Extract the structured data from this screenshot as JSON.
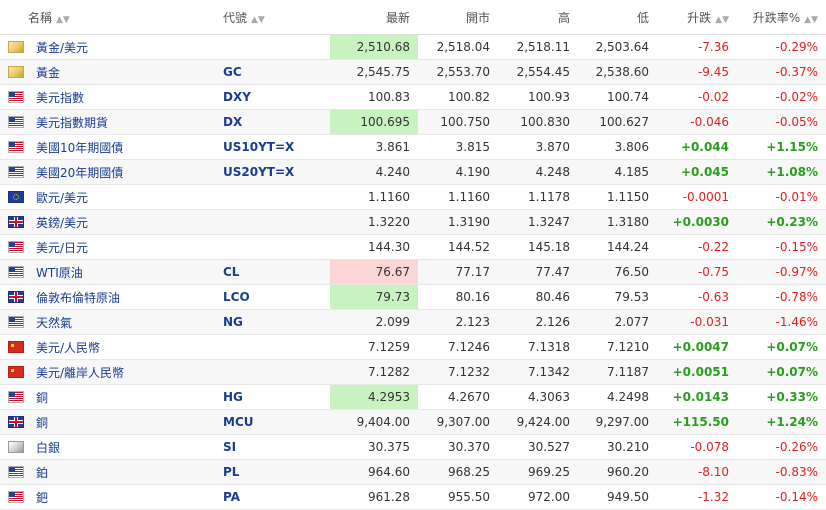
{
  "headers": {
    "name": "名稱",
    "code": "代號",
    "last": "最新",
    "open": "開市",
    "high": "高",
    "low": "低",
    "change": "升跌",
    "change_pct": "升跌率%"
  },
  "rows": [
    {
      "icon": "gold-icon",
      "name": "黃金/美元",
      "code": "",
      "last": "2,510.68",
      "open": "2,518.04",
      "high": "2,518.11",
      "low": "2,503.64",
      "change": "-7.36",
      "change_pct": "-0.29%",
      "dir": "down",
      "hl": "green"
    },
    {
      "icon": "gold-icon",
      "name": "黃金",
      "code": "GC",
      "last": "2,545.75",
      "open": "2,553.70",
      "high": "2,554.45",
      "low": "2,538.60",
      "change": "-9.45",
      "change_pct": "-0.37%",
      "dir": "down",
      "hl": ""
    },
    {
      "icon": "us-flag-icon",
      "name": "美元指數",
      "code": "DXY",
      "last": "100.83",
      "open": "100.82",
      "high": "100.93",
      "low": "100.74",
      "change": "-0.02",
      "change_pct": "-0.02%",
      "dir": "down",
      "hl": ""
    },
    {
      "icon": "us-flag-icon",
      "name": "美元指數期貨",
      "code": "DX",
      "last": "100.695",
      "open": "100.750",
      "high": "100.830",
      "low": "100.627",
      "change": "-0.046",
      "change_pct": "-0.05%",
      "dir": "down",
      "hl": "green"
    },
    {
      "icon": "us-flag-icon",
      "name": "美國10年期國債",
      "code": "US10YT=X",
      "last": "3.861",
      "open": "3.815",
      "high": "3.870",
      "low": "3.806",
      "change": "+0.044",
      "change_pct": "+1.15%",
      "dir": "up",
      "hl": ""
    },
    {
      "icon": "us-flag-icon",
      "name": "美國20年期國債",
      "code": "US20YT=X",
      "last": "4.240",
      "open": "4.190",
      "high": "4.248",
      "low": "4.185",
      "change": "+0.045",
      "change_pct": "+1.08%",
      "dir": "up",
      "hl": ""
    },
    {
      "icon": "eu-flag-icon",
      "name": "歐元/美元",
      "code": "",
      "last": "1.1160",
      "open": "1.1160",
      "high": "1.1178",
      "low": "1.1150",
      "change": "-0.0001",
      "change_pct": "-0.01%",
      "dir": "down",
      "hl": ""
    },
    {
      "icon": "uk-flag-icon",
      "name": "英鎊/美元",
      "code": "",
      "last": "1.3220",
      "open": "1.3190",
      "high": "1.3247",
      "low": "1.3180",
      "change": "+0.0030",
      "change_pct": "+0.23%",
      "dir": "up",
      "hl": ""
    },
    {
      "icon": "us-flag-icon",
      "name": "美元/日元",
      "code": "",
      "last": "144.30",
      "open": "144.52",
      "high": "145.18",
      "low": "144.24",
      "change": "-0.22",
      "change_pct": "-0.15%",
      "dir": "down",
      "hl": ""
    },
    {
      "icon": "us-flag-icon",
      "name": "WTI原油",
      "code": "CL",
      "last": "76.67",
      "open": "77.17",
      "high": "77.47",
      "low": "76.50",
      "change": "-0.75",
      "change_pct": "-0.97%",
      "dir": "down",
      "hl": "red"
    },
    {
      "icon": "uk-flag-icon",
      "name": "倫敦布倫特原油",
      "code": "LCO",
      "last": "79.73",
      "open": "80.16",
      "high": "80.46",
      "low": "79.53",
      "change": "-0.63",
      "change_pct": "-0.78%",
      "dir": "down",
      "hl": "green"
    },
    {
      "icon": "us-flag-icon",
      "name": "天然氣",
      "code": "NG",
      "last": "2.099",
      "open": "2.123",
      "high": "2.126",
      "low": "2.077",
      "change": "-0.031",
      "change_pct": "-1.46%",
      "dir": "down",
      "hl": ""
    },
    {
      "icon": "cn-flag-icon",
      "name": "美元/人民幣",
      "code": "",
      "last": "7.1259",
      "open": "7.1246",
      "high": "7.1318",
      "low": "7.1210",
      "change": "+0.0047",
      "change_pct": "+0.07%",
      "dir": "up",
      "hl": ""
    },
    {
      "icon": "cn-flag-icon",
      "name": "美元/離岸人民幣",
      "code": "",
      "last": "7.1282",
      "open": "7.1232",
      "high": "7.1342",
      "low": "7.1187",
      "change": "+0.0051",
      "change_pct": "+0.07%",
      "dir": "up",
      "hl": ""
    },
    {
      "icon": "us-flag-icon",
      "name": "銅",
      "code": "HG",
      "last": "4.2953",
      "open": "4.2670",
      "high": "4.3063",
      "low": "4.2498",
      "change": "+0.0143",
      "change_pct": "+0.33%",
      "dir": "up",
      "hl": "green"
    },
    {
      "icon": "uk-flag-icon",
      "name": "銅",
      "code": "MCU",
      "last": "9,404.00",
      "open": "9,307.00",
      "high": "9,424.00",
      "low": "9,297.00",
      "change": "+115.50",
      "change_pct": "+1.24%",
      "dir": "up",
      "hl": ""
    },
    {
      "icon": "silver-icon",
      "name": "白銀",
      "code": "SI",
      "last": "30.375",
      "open": "30.370",
      "high": "30.527",
      "low": "30.210",
      "change": "-0.078",
      "change_pct": "-0.26%",
      "dir": "down",
      "hl": ""
    },
    {
      "icon": "us-flag-icon",
      "name": "鉑",
      "code": "PL",
      "last": "964.60",
      "open": "968.25",
      "high": "969.25",
      "low": "960.20",
      "change": "-8.10",
      "change_pct": "-0.83%",
      "dir": "down",
      "hl": ""
    },
    {
      "icon": "us-flag-icon",
      "name": "鈀",
      "code": "PA",
      "last": "961.28",
      "open": "955.50",
      "high": "972.00",
      "low": "949.50",
      "change": "-1.32",
      "change_pct": "-0.14%",
      "dir": "down",
      "hl": ""
    }
  ]
}
